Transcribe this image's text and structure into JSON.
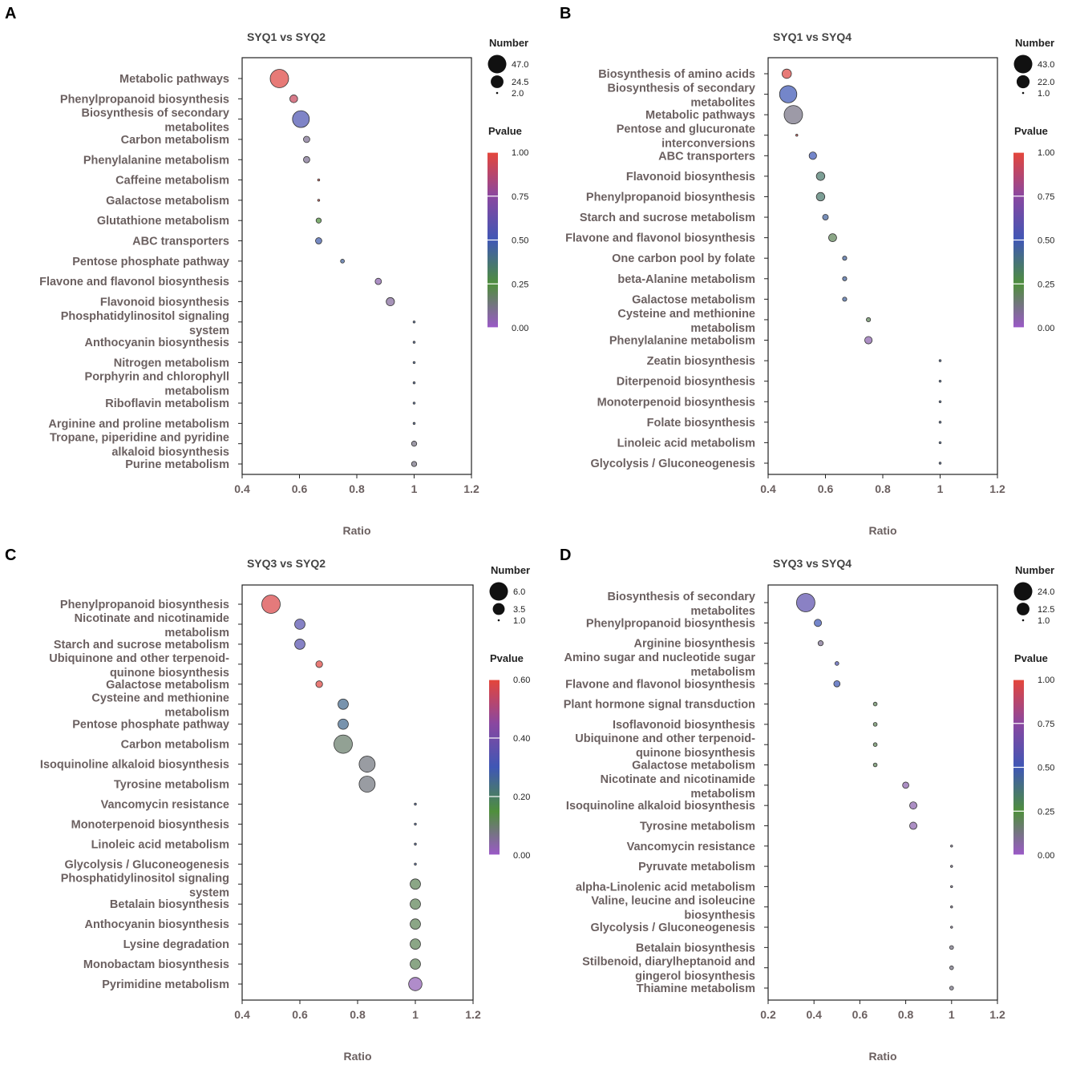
{
  "colors": {
    "low": "#8b5fbf",
    "mid1": "#5a8f3c",
    "mid2": "#3a58b0",
    "mid3": "#7a4fa8",
    "high": "#e0473b"
  },
  "chart_data": [
    {
      "panel": "A",
      "type": "scatter",
      "title": "SYQ1 vs SYQ2",
      "xlabel": "Ratio",
      "xlim": [
        0.4,
        1.2
      ],
      "xticks": [
        "0.4",
        "0.6",
        "0.8",
        "1",
        "1.2"
      ],
      "size_legend": {
        "title": "Number",
        "values": [
          "47.0",
          "24.5",
          "2.0"
        ],
        "max": 47,
        "min": 2
      },
      "color_legend": {
        "title": "Pvalue",
        "ticks": [
          "1.00",
          "0.75",
          "0.50",
          "0.25",
          "0.00"
        ],
        "max": 1.0
      },
      "pathways": [
        {
          "name": [
            "Metabolic pathways"
          ],
          "ratio": 0.53,
          "number": 47,
          "pvalue": 0.98
        },
        {
          "name": [
            "Phenylpropanoid biosynthesis"
          ],
          "ratio": 0.58,
          "number": 11,
          "pvalue": 0.92
        },
        {
          "name": [
            "Biosynthesis of secondary",
            "metabolites"
          ],
          "ratio": 0.605,
          "number": 40,
          "pvalue": 0.55
        },
        {
          "name": [
            "Carbon metabolism"
          ],
          "ratio": 0.625,
          "number": 8,
          "pvalue": 0.1
        },
        {
          "name": [
            "Phenylalanine metabolism"
          ],
          "ratio": 0.625,
          "number": 8,
          "pvalue": 0.1
        },
        {
          "name": [
            "Caffeine metabolism"
          ],
          "ratio": 0.667,
          "number": 2,
          "pvalue": 0.99
        },
        {
          "name": [
            "Galactose metabolism"
          ],
          "ratio": 0.667,
          "number": 2,
          "pvalue": 0.99
        },
        {
          "name": [
            "Glutathione metabolism"
          ],
          "ratio": 0.667,
          "number": 6,
          "pvalue": 0.25
        },
        {
          "name": [
            "ABC transporters"
          ],
          "ratio": 0.667,
          "number": 8,
          "pvalue": 0.48
        },
        {
          "name": [
            "Pentose phosphate pathway"
          ],
          "ratio": 0.75,
          "number": 4,
          "pvalue": 0.45
        },
        {
          "name": [
            "Flavone and flavonol biosynthesis"
          ],
          "ratio": 0.875,
          "number": 8,
          "pvalue": 0.05
        },
        {
          "name": [
            "Flavonoid biosynthesis"
          ],
          "ratio": 0.917,
          "number": 12,
          "pvalue": 0.08
        },
        {
          "name": [
            "Phosphatidylinositol signaling",
            "system"
          ],
          "ratio": 1.0,
          "number": 2,
          "pvalue": 0.45
        },
        {
          "name": [
            "Anthocyanin biosynthesis"
          ],
          "ratio": 1.0,
          "number": 2,
          "pvalue": 0.45
        },
        {
          "name": [
            "Nitrogen metabolism"
          ],
          "ratio": 1.0,
          "number": 2,
          "pvalue": 0.45
        },
        {
          "name": [
            "Porphyrin and chlorophyll",
            "metabolism"
          ],
          "ratio": 1.0,
          "number": 2,
          "pvalue": 0.45
        },
        {
          "name": [
            "Riboflavin metabolism"
          ],
          "ratio": 1.0,
          "number": 2,
          "pvalue": 0.45
        },
        {
          "name": [
            "Arginine and proline metabolism"
          ],
          "ratio": 1.0,
          "number": 2,
          "pvalue": 0.45
        },
        {
          "name": [
            "Tropane, piperidine and pyridine",
            "alkaloid biosynthesis"
          ],
          "ratio": 1.0,
          "number": 6,
          "pvalue": 0.12
        },
        {
          "name": [
            "Purine metabolism"
          ],
          "ratio": 1.0,
          "number": 6,
          "pvalue": 0.12
        }
      ]
    },
    {
      "panel": "B",
      "type": "scatter",
      "title": "SYQ1 vs SYQ4",
      "xlabel": "Ratio",
      "xlim": [
        0.4,
        1.2
      ],
      "xticks": [
        "0.4",
        "0.6",
        "0.8",
        "1",
        "1.2"
      ],
      "size_legend": {
        "title": "Number",
        "values": [
          "43.0",
          "22.0",
          "1.0"
        ],
        "max": 43,
        "min": 1
      },
      "color_legend": {
        "title": "Pvalue",
        "ticks": [
          "1.00",
          "0.75",
          "0.50",
          "0.25",
          "0.00"
        ],
        "max": 1.0
      },
      "pathways": [
        {
          "name": [
            "Biosynthesis of amino acids"
          ],
          "ratio": 0.465,
          "number": 12,
          "pvalue": 0.98
        },
        {
          "name": [
            "Biosynthesis of secondary",
            "metabolites"
          ],
          "ratio": 0.47,
          "number": 38,
          "pvalue": 0.5
        },
        {
          "name": [
            "Metabolic pathways"
          ],
          "ratio": 0.488,
          "number": 43,
          "pvalue": 0.12
        },
        {
          "name": [
            "Pentose and glucuronate",
            "interconversions"
          ],
          "ratio": 0.5,
          "number": 1,
          "pvalue": 0.99
        },
        {
          "name": [
            "ABC transporters"
          ],
          "ratio": 0.556,
          "number": 8,
          "pvalue": 0.5
        },
        {
          "name": [
            "Flavonoid biosynthesis"
          ],
          "ratio": 0.583,
          "number": 10,
          "pvalue": 0.35
        },
        {
          "name": [
            "Phenylpropanoid biosynthesis"
          ],
          "ratio": 0.583,
          "number": 10,
          "pvalue": 0.35
        },
        {
          "name": [
            "Starch and sucrose metabolism"
          ],
          "ratio": 0.6,
          "number": 5,
          "pvalue": 0.45
        },
        {
          "name": [
            "Flavone and flavonol biosynthesis"
          ],
          "ratio": 0.625,
          "number": 9,
          "pvalue": 0.2
        },
        {
          "name": [
            "One carbon pool by folate"
          ],
          "ratio": 0.667,
          "number": 3,
          "pvalue": 0.45
        },
        {
          "name": [
            "beta-Alanine metabolism"
          ],
          "ratio": 0.667,
          "number": 3,
          "pvalue": 0.45
        },
        {
          "name": [
            "Galactose metabolism"
          ],
          "ratio": 0.667,
          "number": 3,
          "pvalue": 0.45
        },
        {
          "name": [
            "Cysteine and methionine",
            "metabolism"
          ],
          "ratio": 0.75,
          "number": 3,
          "pvalue": 0.2
        },
        {
          "name": [
            "Phenylalanine metabolism"
          ],
          "ratio": 0.75,
          "number": 8,
          "pvalue": 0.05
        },
        {
          "name": [
            "Zeatin biosynthesis"
          ],
          "ratio": 1.0,
          "number": 1,
          "pvalue": 0.45
        },
        {
          "name": [
            "Diterpenoid biosynthesis"
          ],
          "ratio": 1.0,
          "number": 1,
          "pvalue": 0.45
        },
        {
          "name": [
            "Monoterpenoid biosynthesis"
          ],
          "ratio": 1.0,
          "number": 1,
          "pvalue": 0.45
        },
        {
          "name": [
            "Folate biosynthesis"
          ],
          "ratio": 1.0,
          "number": 1,
          "pvalue": 0.45
        },
        {
          "name": [
            "Linoleic acid metabolism"
          ],
          "ratio": 1.0,
          "number": 1,
          "pvalue": 0.45
        },
        {
          "name": [
            "Glycolysis / Gluconeogenesis"
          ],
          "ratio": 1.0,
          "number": 1,
          "pvalue": 0.45
        }
      ]
    },
    {
      "panel": "C",
      "type": "scatter",
      "title": "SYQ3 vs SYQ2",
      "xlabel": "Ratio",
      "xlim": [
        0.4,
        1.2
      ],
      "xticks": [
        "0.4",
        "0.6",
        "0.8",
        "1",
        "1.2"
      ],
      "size_legend": {
        "title": "Number",
        "values": [
          "6.0",
          "3.5",
          "1.0"
        ],
        "max": 6,
        "min": 1
      },
      "color_legend": {
        "title": "Pvalue",
        "ticks": [
          "0.60",
          "0.40",
          "0.20",
          "0.00"
        ],
        "max": 0.6
      },
      "pathways": [
        {
          "name": [
            "Phenylpropanoid biosynthesis"
          ],
          "ratio": 0.5,
          "number": 6,
          "pvalue": 0.58
        },
        {
          "name": [
            "Nicotinate and nicotinamide",
            "metabolism"
          ],
          "ratio": 0.6,
          "number": 3,
          "pvalue": 0.35
        },
        {
          "name": [
            "Starch and sucrose metabolism"
          ],
          "ratio": 0.6,
          "number": 3,
          "pvalue": 0.35
        },
        {
          "name": [
            "Ubiquinone and other terpenoid-",
            "quinone biosynthesis"
          ],
          "ratio": 0.667,
          "number": 2,
          "pvalue": 0.59
        },
        {
          "name": [
            "Galactose metabolism"
          ],
          "ratio": 0.667,
          "number": 2,
          "pvalue": 0.59
        },
        {
          "name": [
            "Cysteine and methionine",
            "metabolism"
          ],
          "ratio": 0.75,
          "number": 3,
          "pvalue": 0.25
        },
        {
          "name": [
            "Pentose phosphate pathway"
          ],
          "ratio": 0.75,
          "number": 3,
          "pvalue": 0.25
        },
        {
          "name": [
            "Carbon metabolism"
          ],
          "ratio": 0.75,
          "number": 6,
          "pvalue": 0.1
        },
        {
          "name": [
            "Isoquinoline alkaloid biosynthesis"
          ],
          "ratio": 0.833,
          "number": 5,
          "pvalue": 0.08
        },
        {
          "name": [
            "Tyrosine metabolism"
          ],
          "ratio": 0.833,
          "number": 5,
          "pvalue": 0.08
        },
        {
          "name": [
            "Vancomycin resistance"
          ],
          "ratio": 1.0,
          "number": 1,
          "pvalue": 0.28
        },
        {
          "name": [
            "Monoterpenoid biosynthesis"
          ],
          "ratio": 1.0,
          "number": 1,
          "pvalue": 0.28
        },
        {
          "name": [
            "Linoleic acid metabolism"
          ],
          "ratio": 1.0,
          "number": 1,
          "pvalue": 0.28
        },
        {
          "name": [
            "Glycolysis / Gluconeogenesis"
          ],
          "ratio": 1.0,
          "number": 1,
          "pvalue": 0.28
        },
        {
          "name": [
            "Phosphatidylinositol signaling",
            "system"
          ],
          "ratio": 1.0,
          "number": 3,
          "pvalue": 0.12
        },
        {
          "name": [
            "Betalain biosynthesis"
          ],
          "ratio": 1.0,
          "number": 3,
          "pvalue": 0.12
        },
        {
          "name": [
            "Anthocyanin biosynthesis"
          ],
          "ratio": 1.0,
          "number": 3,
          "pvalue": 0.12
        },
        {
          "name": [
            "Lysine degradation"
          ],
          "ratio": 1.0,
          "number": 3,
          "pvalue": 0.12
        },
        {
          "name": [
            "Monobactam biosynthesis"
          ],
          "ratio": 1.0,
          "number": 3,
          "pvalue": 0.12
        },
        {
          "name": [
            "Pyrimidine metabolism"
          ],
          "ratio": 1.0,
          "number": 4,
          "pvalue": 0.02
        }
      ]
    },
    {
      "panel": "D",
      "type": "scatter",
      "title": "SYQ3 vs SYQ4",
      "xlabel": "Ratio",
      "xlim": [
        0.2,
        1.2
      ],
      "xticks": [
        "0.2",
        "0.4",
        "0.6",
        "0.8",
        "1",
        "1.2"
      ],
      "size_legend": {
        "title": "Number",
        "values": [
          "24.0",
          "12.5",
          "1.0"
        ],
        "max": 24,
        "min": 1
      },
      "color_legend": {
        "title": "Pvalue",
        "ticks": [
          "1.00",
          "0.75",
          "0.50",
          "0.25",
          "0.00"
        ],
        "max": 1.0
      },
      "pathways": [
        {
          "name": [
            "Biosynthesis of secondary",
            "metabolites"
          ],
          "ratio": 0.364,
          "number": 24,
          "pvalue": 0.6
        },
        {
          "name": [
            "Phenylpropanoid biosynthesis"
          ],
          "ratio": 0.417,
          "number": 5,
          "pvalue": 0.5
        },
        {
          "name": [
            "Arginine biosynthesis"
          ],
          "ratio": 0.429,
          "number": 3,
          "pvalue": 0.1
        },
        {
          "name": [
            "Amino sugar and nucleotide sugar",
            "metabolism"
          ],
          "ratio": 0.5,
          "number": 2,
          "pvalue": 0.55
        },
        {
          "name": [
            "Flavone and flavonol biosynthesis"
          ],
          "ratio": 0.5,
          "number": 4,
          "pvalue": 0.5
        },
        {
          "name": [
            "Plant hormone signal transduction"
          ],
          "ratio": 0.667,
          "number": 2,
          "pvalue": 0.2
        },
        {
          "name": [
            "Isoflavonoid biosynthesis"
          ],
          "ratio": 0.667,
          "number": 2,
          "pvalue": 0.2
        },
        {
          "name": [
            "Ubiquinone and other terpenoid-",
            "quinone biosynthesis"
          ],
          "ratio": 0.667,
          "number": 2,
          "pvalue": 0.2
        },
        {
          "name": [
            "Galactose metabolism"
          ],
          "ratio": 0.667,
          "number": 2,
          "pvalue": 0.2
        },
        {
          "name": [
            "Nicotinate and nicotinamide",
            "metabolism"
          ],
          "ratio": 0.8,
          "number": 4,
          "pvalue": 0.05
        },
        {
          "name": [
            "Isoquinoline alkaloid biosynthesis"
          ],
          "ratio": 0.833,
          "number": 5,
          "pvalue": 0.05
        },
        {
          "name": [
            "Tyrosine metabolism"
          ],
          "ratio": 0.833,
          "number": 5,
          "pvalue": 0.05
        },
        {
          "name": [
            "Vancomycin resistance"
          ],
          "ratio": 1.0,
          "number": 1,
          "pvalue": 0.1
        },
        {
          "name": [
            "Pyruvate metabolism"
          ],
          "ratio": 1.0,
          "number": 1,
          "pvalue": 0.1
        },
        {
          "name": [
            "alpha-Linolenic acid metabolism"
          ],
          "ratio": 1.0,
          "number": 1,
          "pvalue": 0.1
        },
        {
          "name": [
            "Valine, leucine and isoleucine",
            "biosynthesis"
          ],
          "ratio": 1.0,
          "number": 1,
          "pvalue": 0.1
        },
        {
          "name": [
            "Glycolysis / Gluconeogenesis"
          ],
          "ratio": 1.0,
          "number": 1,
          "pvalue": 0.1
        },
        {
          "name": [
            "Betalain biosynthesis"
          ],
          "ratio": 1.0,
          "number": 2,
          "pvalue": 0.12
        },
        {
          "name": [
            "Stilbenoid, diarylheptanoid and",
            "gingerol biosynthesis"
          ],
          "ratio": 1.0,
          "number": 2,
          "pvalue": 0.12
        },
        {
          "name": [
            "Thiamine metabolism"
          ],
          "ratio": 1.0,
          "number": 2,
          "pvalue": 0.12
        }
      ]
    }
  ]
}
